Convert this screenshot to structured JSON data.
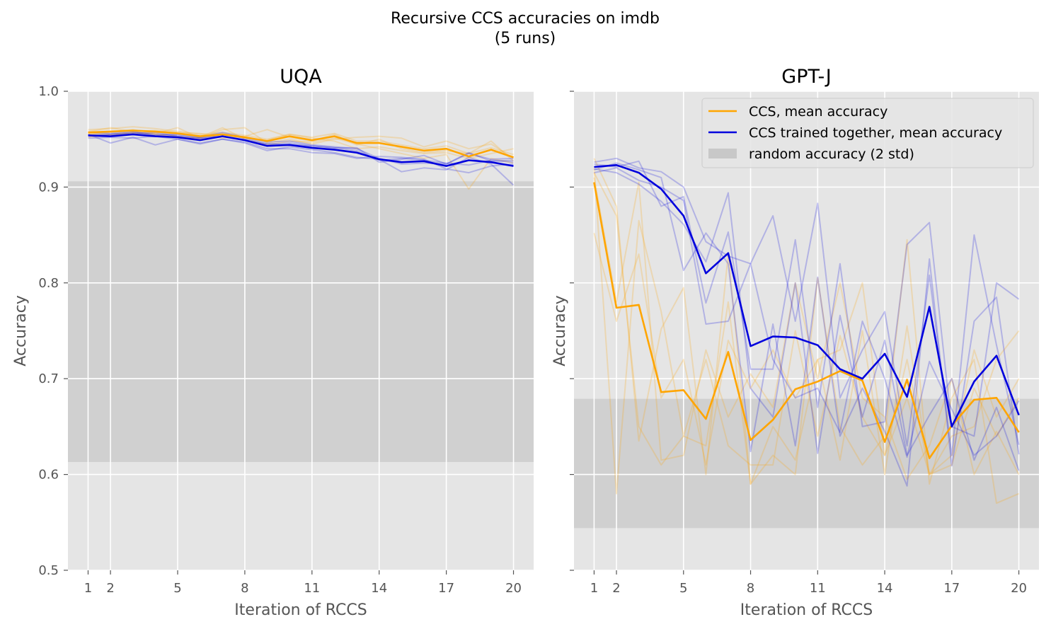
{
  "chart_data": {
    "type": "line",
    "suptitle_lines": [
      "Recursive CCS accuracies on imdb",
      "(5 runs)"
    ],
    "colors": {
      "ccs": "#FFA500",
      "together": "#0000DD",
      "random_band": "#C8C8C8",
      "axes_bg": "#E5E5E5",
      "grid": "#FFFFFF"
    },
    "legend": {
      "position": "top-right of GPT-J panel",
      "entries": [
        "CCS, mean accuracy",
        "CCS trained together, mean accuracy",
        "random accuracy (2 std)"
      ]
    },
    "x_ticks": [
      1,
      2,
      5,
      8,
      11,
      14,
      17,
      20
    ],
    "x_tick_labels": [
      "1",
      "2",
      "5",
      "8",
      "11",
      "14",
      "17",
      "20"
    ],
    "y_ticks": [
      0.5,
      0.6,
      0.7,
      0.8,
      0.9,
      1.0
    ],
    "y_tick_labels": [
      "0.5",
      "0.6",
      "0.7",
      "0.8",
      "0.9",
      "1.0"
    ],
    "ylim": [
      0.5,
      1.0
    ],
    "xlim": [
      0.1,
      20.9
    ],
    "panels": [
      {
        "title": "UQA",
        "xlabel": "Iteration of RCCS",
        "ylabel": "Accuracy",
        "show_y_tick_labels": true,
        "show_legend": false,
        "random_band": [
          0.613,
          0.906
        ],
        "x": [
          1,
          2,
          3,
          4,
          5,
          6,
          7,
          8,
          9,
          10,
          11,
          12,
          13,
          14,
          15,
          16,
          17,
          18,
          19,
          20
        ],
        "series": [
          {
            "name": "CCS, mean accuracy",
            "color_key": "ccs",
            "values": [
              0.957,
              0.958,
              0.959,
              0.958,
              0.956,
              0.953,
              0.955,
              0.952,
              0.948,
              0.953,
              0.949,
              0.953,
              0.946,
              0.946,
              0.942,
              0.938,
              0.94,
              0.932,
              0.939,
              0.931
            ]
          },
          {
            "name": "CCS trained together, mean accuracy",
            "color_key": "together",
            "values": [
              0.954,
              0.953,
              0.955,
              0.953,
              0.952,
              0.949,
              0.953,
              0.949,
              0.943,
              0.944,
              0.941,
              0.939,
              0.936,
              0.929,
              0.926,
              0.927,
              0.922,
              0.928,
              0.926,
              0.922
            ]
          }
        ],
        "runs_ccs": [
          [
            0.96,
            0.961,
            0.963,
            0.961,
            0.958,
            0.955,
            0.957,
            0.954,
            0.95,
            0.955,
            0.952,
            0.956,
            0.948,
            0.948,
            0.944,
            0.94,
            0.943,
            0.935,
            0.941,
            0.934
          ],
          [
            0.955,
            0.957,
            0.96,
            0.956,
            0.962,
            0.951,
            0.96,
            0.962,
            0.946,
            0.95,
            0.945,
            0.95,
            0.952,
            0.953,
            0.951,
            0.942,
            0.948,
            0.94,
            0.945,
            0.93
          ],
          [
            0.952,
            0.954,
            0.957,
            0.955,
            0.951,
            0.952,
            0.962,
            0.95,
            0.944,
            0.948,
            0.947,
            0.951,
            0.945,
            0.94,
            0.935,
            0.93,
            0.934,
            0.898,
            0.93,
            0.925
          ],
          [
            0.958,
            0.962,
            0.958,
            0.959,
            0.957,
            0.956,
            0.951,
            0.953,
            0.96,
            0.952,
            0.948,
            0.955,
            0.944,
            0.95,
            0.94,
            0.936,
            0.938,
            0.935,
            0.948,
            0.927
          ],
          [
            0.956,
            0.955,
            0.957,
            0.956,
            0.953,
            0.95,
            0.955,
            0.951,
            0.949,
            0.955,
            0.951,
            0.948,
            0.94,
            0.942,
            0.938,
            0.935,
            0.936,
            0.93,
            0.935,
            0.94
          ]
        ],
        "runs_together": [
          [
            0.955,
            0.946,
            0.952,
            0.944,
            0.95,
            0.945,
            0.95,
            0.946,
            0.938,
            0.942,
            0.939,
            0.936,
            0.931,
            0.929,
            0.916,
            0.92,
            0.918,
            0.931,
            0.924,
            0.902
          ],
          [
            0.953,
            0.955,
            0.957,
            0.955,
            0.954,
            0.951,
            0.955,
            0.951,
            0.945,
            0.946,
            0.943,
            0.941,
            0.938,
            0.928,
            0.93,
            0.928,
            0.925,
            0.923,
            0.928,
            0.926
          ],
          [
            0.951,
            0.952,
            0.951,
            0.953,
            0.95,
            0.946,
            0.95,
            0.947,
            0.94,
            0.94,
            0.936,
            0.935,
            0.93,
            0.932,
            0.931,
            0.929,
            0.919,
            0.915,
            0.922,
            0.924
          ],
          [
            0.957,
            0.956,
            0.958,
            0.954,
            0.955,
            0.952,
            0.957,
            0.952,
            0.947,
            0.948,
            0.944,
            0.942,
            0.94,
            0.93,
            0.924,
            0.925,
            0.924,
            0.935,
            0.929,
            0.93
          ],
          [
            0.954,
            0.955,
            0.956,
            0.957,
            0.953,
            0.951,
            0.953,
            0.949,
            0.945,
            0.944,
            0.943,
            0.941,
            0.941,
            0.926,
            0.929,
            0.933,
            0.924,
            0.936,
            0.927,
            0.928
          ]
        ]
      },
      {
        "title": "GPT-J",
        "xlabel": "Iteration of RCCS",
        "ylabel": "Accuracy",
        "show_y_tick_labels": false,
        "show_legend": true,
        "random_band": [
          0.544,
          0.679
        ],
        "x": [
          1,
          2,
          3,
          4,
          5,
          6,
          7,
          8,
          9,
          10,
          11,
          12,
          13,
          14,
          15,
          16,
          17,
          18,
          19,
          20
        ],
        "series": [
          {
            "name": "CCS, mean accuracy",
            "color_key": "ccs",
            "values": [
              0.905,
              0.774,
              0.777,
              0.686,
              0.688,
              0.658,
              0.728,
              0.636,
              0.657,
              0.689,
              0.697,
              0.708,
              0.698,
              0.634,
              0.699,
              0.617,
              0.651,
              0.678,
              0.68,
              0.644
            ]
          },
          {
            "name": "CCS trained together, mean accuracy",
            "color_key": "together",
            "values": [
              0.921,
              0.923,
              0.915,
              0.898,
              0.87,
              0.81,
              0.831,
              0.734,
              0.744,
              0.743,
              0.735,
              0.71,
              0.7,
              0.726,
              0.681,
              0.775,
              0.65,
              0.697,
              0.724,
              0.662
            ]
          }
        ],
        "runs_ccs": [
          [
            0.93,
            0.88,
            0.635,
            0.752,
            0.795,
            0.6,
            0.83,
            0.59,
            0.62,
            0.6,
            0.805,
            0.65,
            0.61,
            0.64,
            0.845,
            0.59,
            0.68,
            0.72,
            0.57,
            0.58
          ],
          [
            0.92,
            0.58,
            0.865,
            0.77,
            0.64,
            0.72,
            0.63,
            0.61,
            0.61,
            0.75,
            0.64,
            0.745,
            0.66,
            0.62,
            0.68,
            0.6,
            0.64,
            0.65,
            0.72,
            0.75
          ],
          [
            0.91,
            0.78,
            0.905,
            0.615,
            0.62,
            0.73,
            0.66,
            0.705,
            0.67,
            0.8,
            0.7,
            0.8,
            0.68,
            0.66,
            0.595,
            0.63,
            0.7,
            0.6,
            0.645,
            0.6
          ],
          [
            0.852,
            0.76,
            0.83,
            0.68,
            0.72,
            0.61,
            0.74,
            0.69,
            0.73,
            0.68,
            0.72,
            0.615,
            0.75,
            0.6,
            0.755,
            0.6,
            0.62,
            0.73,
            0.66,
            0.7
          ],
          [
            0.915,
            0.87,
            0.65,
            0.61,
            0.64,
            0.63,
            0.78,
            0.59,
            0.65,
            0.615,
            0.72,
            0.73,
            0.8,
            0.62,
            0.72,
            0.6,
            0.61,
            0.69,
            0.64,
            0.68
          ]
        ],
        "runs_together": [
          [
            0.926,
            0.93,
            0.92,
            0.916,
            0.9,
            0.843,
            0.828,
            0.82,
            0.87,
            0.76,
            0.883,
            0.68,
            0.73,
            0.77,
            0.63,
            0.808,
            0.62,
            0.85,
            0.735,
            0.631
          ],
          [
            0.924,
            0.921,
            0.927,
            0.88,
            0.89,
            0.779,
            0.853,
            0.71,
            0.71,
            0.845,
            0.67,
            0.82,
            0.65,
            0.655,
            0.84,
            0.863,
            0.65,
            0.64,
            0.8,
            0.783
          ],
          [
            0.918,
            0.925,
            0.918,
            0.91,
            0.813,
            0.852,
            0.82,
            0.624,
            0.757,
            0.63,
            0.806,
            0.64,
            0.69,
            0.645,
            0.588,
            0.825,
            0.609,
            0.76,
            0.785,
            0.621
          ],
          [
            0.919,
            0.915,
            0.903,
            0.885,
            0.861,
            0.822,
            0.894,
            0.69,
            0.66,
            0.8,
            0.622,
            0.766,
            0.66,
            0.74,
            0.62,
            0.662,
            0.7,
            0.615,
            0.67,
            0.604
          ],
          [
            0.915,
            0.92,
            0.907,
            0.9,
            0.886,
            0.757,
            0.76,
            0.82,
            0.72,
            0.68,
            0.69,
            0.644,
            0.76,
            0.7,
            0.618,
            0.718,
            0.668,
            0.62,
            0.64,
            0.677
          ]
        ]
      }
    ]
  }
}
